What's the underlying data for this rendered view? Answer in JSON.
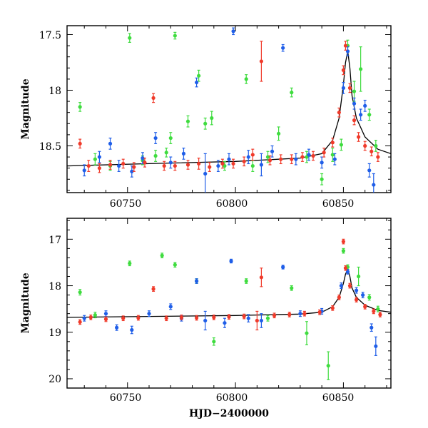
{
  "chart_data": [
    {
      "type": "scatter",
      "panel": "top",
      "xlabel": "",
      "ylabel": "Magnitude",
      "xlim": [
        60722,
        60872
      ],
      "ylim": [
        18.92,
        17.42
      ],
      "yaxis_inverted": true,
      "xticks": [
        60750,
        60800,
        60850
      ],
      "xtick_labels": [
        "60750",
        "60800",
        "60850"
      ],
      "yticks": [
        17.5,
        18,
        18.5
      ],
      "ytick_labels": [
        "17.5",
        "18",
        "18.5"
      ],
      "error_bars": true,
      "series": [
        {
          "color": "#3fdc3f",
          "points": [
            [
              60728,
              18.15,
              0.04
            ],
            [
              60735,
              18.62,
              0.05
            ],
            [
              60742,
              18.68,
              0.04
            ],
            [
              60751,
              17.53,
              0.04
            ],
            [
              60757,
              18.63,
              0.04
            ],
            [
              60763,
              18.59,
              0.05
            ],
            [
              60768,
              18.56,
              0.04
            ],
            [
              60770,
              18.43,
              0.05
            ],
            [
              60772,
              17.51,
              0.03
            ],
            [
              60778,
              18.28,
              0.05
            ],
            [
              60783,
              17.87,
              0.05
            ],
            [
              60786,
              18.3,
              0.05
            ],
            [
              60789,
              18.25,
              0.06
            ],
            [
              60795,
              18.68,
              0.04
            ],
            [
              60805,
              17.9,
              0.04
            ],
            [
              60808,
              18.68,
              0.05
            ],
            [
              60815,
              18.6,
              0.05
            ],
            [
              60820,
              18.39,
              0.06
            ],
            [
              60826,
              18.02,
              0.04
            ],
            [
              60833,
              18.6,
              0.05
            ],
            [
              60840,
              18.8,
              0.05
            ],
            [
              60845,
              18.58,
              0.06
            ],
            [
              60849,
              18.49,
              0.05
            ],
            [
              60852,
              17.6,
              0.05
            ],
            [
              60855,
              18.01,
              0.09
            ],
            [
              60858,
              17.81,
              0.2
            ],
            [
              60862,
              18.22,
              0.05
            ],
            [
              60865,
              18.5,
              0.05
            ]
          ]
        },
        {
          "color": "#1f5ee8",
          "points": [
            [
              60730,
              18.72,
              0.05
            ],
            [
              60737,
              18.6,
              0.05
            ],
            [
              60742,
              18.48,
              0.05
            ],
            [
              60746,
              18.68,
              0.05
            ],
            [
              60752,
              18.73,
              0.05
            ],
            [
              60757,
              18.61,
              0.05
            ],
            [
              60763,
              18.43,
              0.05
            ],
            [
              60770,
              18.65,
              0.05
            ],
            [
              60776,
              18.57,
              0.05
            ],
            [
              60782,
              17.93,
              0.04
            ],
            [
              60786,
              18.75,
              0.18
            ],
            [
              60792,
              18.68,
              0.05
            ],
            [
              60797,
              18.62,
              0.05
            ],
            [
              60799,
              17.47,
              0.03
            ],
            [
              60806,
              18.6,
              0.06
            ],
            [
              60812,
              18.67,
              0.1
            ],
            [
              60817,
              18.55,
              0.05
            ],
            [
              60822,
              17.62,
              0.03
            ],
            [
              60828,
              18.62,
              0.05
            ],
            [
              60834,
              18.58,
              0.05
            ],
            [
              60840,
              18.65,
              0.05
            ],
            [
              60846,
              18.62,
              0.05
            ],
            [
              60850,
              17.98,
              0.05
            ],
            [
              60852,
              17.65,
              0.04
            ],
            [
              60855,
              18.12,
              0.05
            ],
            [
              60858,
              18.22,
              0.05
            ],
            [
              60860,
              18.14,
              0.05
            ],
            [
              60862,
              18.72,
              0.06
            ],
            [
              60864,
              18.85,
              0.1
            ]
          ]
        },
        {
          "color": "#f03a2a",
          "points": [
            [
              60728,
              18.48,
              0.04
            ],
            [
              60732,
              18.68,
              0.05
            ],
            [
              60737,
              18.7,
              0.04
            ],
            [
              60742,
              18.67,
              0.04
            ],
            [
              60748,
              18.66,
              0.04
            ],
            [
              60753,
              18.69,
              0.04
            ],
            [
              60758,
              18.65,
              0.04
            ],
            [
              60762,
              18.07,
              0.04
            ],
            [
              60767,
              18.68,
              0.04
            ],
            [
              60772,
              18.68,
              0.04
            ],
            [
              60778,
              18.67,
              0.04
            ],
            [
              60783,
              18.66,
              0.05
            ],
            [
              60788,
              18.69,
              0.04
            ],
            [
              60794,
              18.66,
              0.04
            ],
            [
              60799,
              18.66,
              0.04
            ],
            [
              60804,
              18.64,
              0.04
            ],
            [
              60808,
              18.58,
              0.05
            ],
            [
              60812,
              17.74,
              0.18
            ],
            [
              60816,
              18.63,
              0.04
            ],
            [
              60821,
              18.62,
              0.04
            ],
            [
              60826,
              18.62,
              0.04
            ],
            [
              60831,
              18.6,
              0.04
            ],
            [
              60836,
              18.59,
              0.04
            ],
            [
              60841,
              18.56,
              0.04
            ],
            [
              60845,
              18.47,
              0.04
            ],
            [
              60848,
              18.2,
              0.04
            ],
            [
              60850,
              17.82,
              0.04
            ],
            [
              60851,
              17.6,
              0.04
            ],
            [
              60853,
              17.98,
              0.04
            ],
            [
              60855,
              18.27,
              0.04
            ],
            [
              60857,
              18.42,
              0.04
            ],
            [
              60860,
              18.5,
              0.04
            ],
            [
              60863,
              18.55,
              0.04
            ],
            [
              60866,
              18.6,
              0.04
            ]
          ]
        }
      ],
      "model_curve": [
        [
          60722,
          18.68
        ],
        [
          60760,
          18.66
        ],
        [
          60800,
          18.64
        ],
        [
          60830,
          18.61
        ],
        [
          60840,
          18.57
        ],
        [
          60845,
          18.45
        ],
        [
          60848,
          18.25
        ],
        [
          60850,
          17.95
        ],
        [
          60851,
          17.75
        ],
        [
          60852,
          17.65
        ],
        [
          60853,
          17.8
        ],
        [
          60854,
          18.05
        ],
        [
          60856,
          18.25
        ],
        [
          60860,
          18.42
        ],
        [
          60866,
          18.53
        ],
        [
          60872,
          18.57
        ]
      ]
    },
    {
      "type": "scatter",
      "panel": "bottom",
      "xlabel": "HJD−2400000",
      "ylabel": "Magnitude",
      "xlim": [
        60722,
        60872
      ],
      "ylim": [
        20.2,
        16.55
      ],
      "yaxis_inverted": true,
      "xticks": [
        60750,
        60800,
        60850
      ],
      "xtick_labels": [
        "60750",
        "60800",
        "60850"
      ],
      "yticks": [
        17,
        18,
        19,
        20
      ],
      "ytick_labels": [
        "17",
        "18",
        "19",
        "20"
      ],
      "error_bars": true,
      "series": [
        {
          "color": "#3fdc3f",
          "points": [
            [
              60728,
              18.14,
              0.06
            ],
            [
              60735,
              18.63,
              0.06
            ],
            [
              60751,
              17.52,
              0.05
            ],
            [
              60766,
              17.35,
              0.05
            ],
            [
              60772,
              17.55,
              0.05
            ],
            [
              60782,
              17.9,
              0.05
            ],
            [
              60790,
              19.2,
              0.08
            ],
            [
              60805,
              17.9,
              0.05
            ],
            [
              60815,
              18.7,
              0.06
            ],
            [
              60826,
              18.05,
              0.05
            ],
            [
              60833,
              19.02,
              0.25
            ],
            [
              60843,
              19.72,
              0.3
            ],
            [
              60850,
              17.25,
              0.05
            ],
            [
              60852,
              17.6,
              0.05
            ],
            [
              60857,
              17.8,
              0.2
            ],
            [
              60862,
              18.25,
              0.06
            ],
            [
              60866,
              18.5,
              0.06
            ]
          ]
        },
        {
          "color": "#1f5ee8",
          "points": [
            [
              60730,
              18.7,
              0.06
            ],
            [
              60740,
              18.6,
              0.06
            ],
            [
              60745,
              18.9,
              0.06
            ],
            [
              60752,
              18.95,
              0.08
            ],
            [
              60760,
              18.6,
              0.06
            ],
            [
              60770,
              18.45,
              0.06
            ],
            [
              60775,
              18.7,
              0.06
            ],
            [
              60782,
              17.9,
              0.05
            ],
            [
              60786,
              18.75,
              0.2
            ],
            [
              60795,
              18.8,
              0.1
            ],
            [
              60798,
              17.47,
              0.04
            ],
            [
              60806,
              18.7,
              0.08
            ],
            [
              60812,
              18.75,
              0.15
            ],
            [
              60822,
              17.6,
              0.04
            ],
            [
              60830,
              18.6,
              0.06
            ],
            [
              60840,
              18.55,
              0.06
            ],
            [
              60849,
              18.0,
              0.06
            ],
            [
              60852,
              17.7,
              0.05
            ],
            [
              60856,
              18.1,
              0.06
            ],
            [
              60859,
              18.2,
              0.06
            ],
            [
              60863,
              18.9,
              0.08
            ],
            [
              60865,
              19.3,
              0.2
            ]
          ]
        },
        {
          "color": "#f03a2a",
          "points": [
            [
              60728,
              18.78,
              0.05
            ],
            [
              60733,
              18.68,
              0.05
            ],
            [
              60740,
              18.72,
              0.05
            ],
            [
              60748,
              18.7,
              0.05
            ],
            [
              60755,
              18.69,
              0.05
            ],
            [
              60762,
              18.07,
              0.05
            ],
            [
              60768,
              18.7,
              0.05
            ],
            [
              60775,
              18.68,
              0.05
            ],
            [
              60782,
              18.69,
              0.05
            ],
            [
              60790,
              18.68,
              0.05
            ],
            [
              60797,
              18.67,
              0.05
            ],
            [
              60804,
              18.66,
              0.05
            ],
            [
              60810,
              18.75,
              0.2
            ],
            [
              60812,
              17.82,
              0.2
            ],
            [
              60818,
              18.64,
              0.05
            ],
            [
              60825,
              18.62,
              0.05
            ],
            [
              60832,
              18.6,
              0.05
            ],
            [
              60839,
              18.57,
              0.05
            ],
            [
              60845,
              18.48,
              0.05
            ],
            [
              60848,
              18.25,
              0.05
            ],
            [
              60850,
              17.05,
              0.05
            ],
            [
              60851,
              17.62,
              0.05
            ],
            [
              60853,
              18.0,
              0.05
            ],
            [
              60856,
              18.3,
              0.05
            ],
            [
              60860,
              18.45,
              0.05
            ],
            [
              60864,
              18.55,
              0.05
            ],
            [
              60867,
              18.62,
              0.05
            ]
          ]
        }
      ],
      "model_curve": [
        [
          60722,
          18.68
        ],
        [
          60760,
          18.66
        ],
        [
          60800,
          18.64
        ],
        [
          60830,
          18.61
        ],
        [
          60840,
          18.57
        ],
        [
          60845,
          18.45
        ],
        [
          60848,
          18.25
        ],
        [
          60850,
          17.95
        ],
        [
          60851,
          17.75
        ],
        [
          60852,
          17.65
        ],
        [
          60853,
          17.8
        ],
        [
          60854,
          18.05
        ],
        [
          60856,
          18.25
        ],
        [
          60860,
          18.42
        ],
        [
          60866,
          18.53
        ],
        [
          60872,
          18.57
        ]
      ]
    }
  ]
}
